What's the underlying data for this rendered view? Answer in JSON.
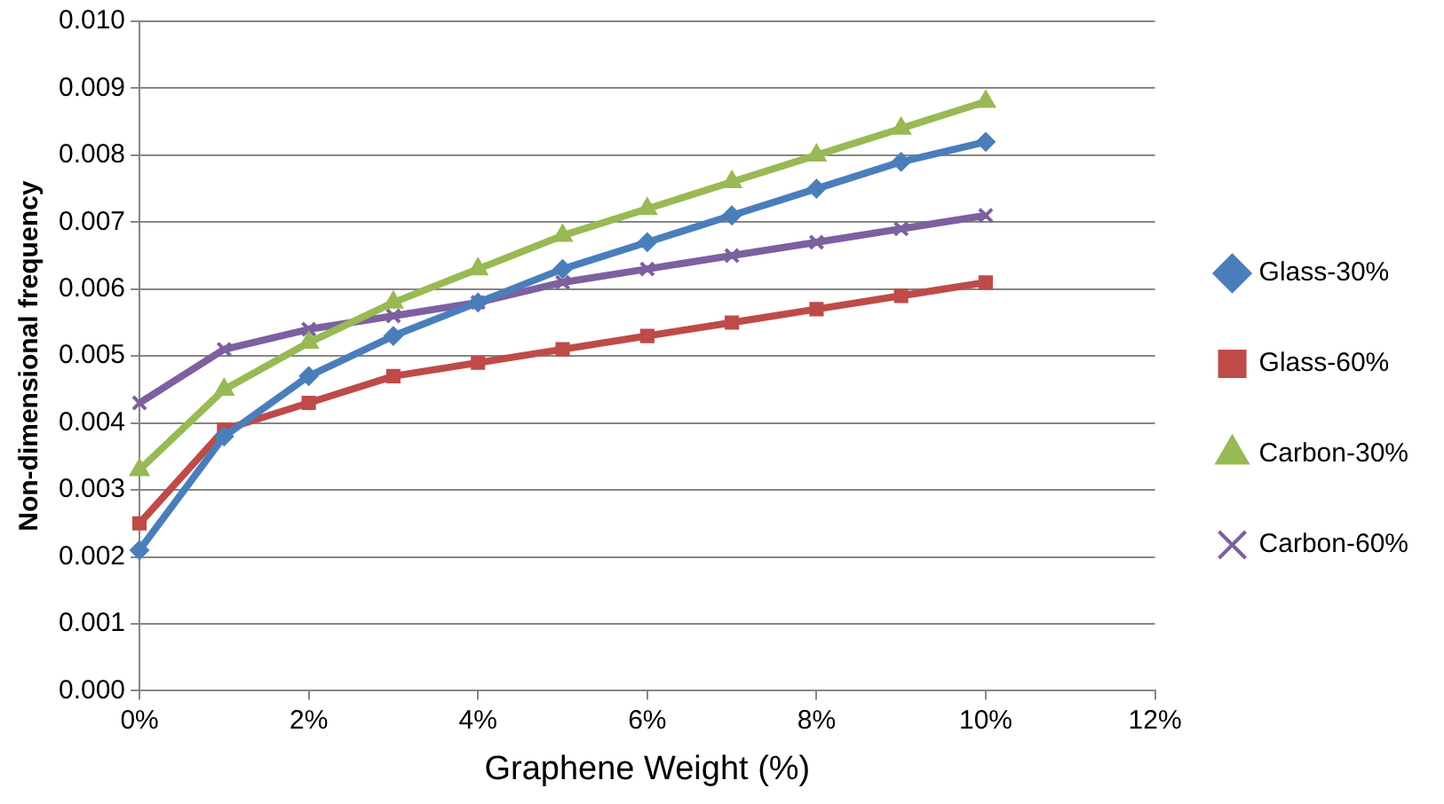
{
  "chart_data": {
    "type": "line",
    "xlabel": "Graphene Weight (%)",
    "ylabel": "Non-dimensional frequency",
    "x": [
      0,
      1,
      2,
      3,
      4,
      5,
      6,
      7,
      8,
      9,
      10
    ],
    "series": [
      {
        "name": "Glass-30%",
        "color": "#4a7ebb",
        "marker": "diamond",
        "values": [
          0.0021,
          0.0038,
          0.0047,
          0.0053,
          0.0058,
          0.0063,
          0.0067,
          0.0071,
          0.0075,
          0.0079,
          0.0082
        ]
      },
      {
        "name": "Glass-60%",
        "color": "#be4b48",
        "marker": "square",
        "values": [
          0.0025,
          0.0039,
          0.0043,
          0.0047,
          0.0049,
          0.0051,
          0.0053,
          0.0055,
          0.0057,
          0.0059,
          0.0061
        ]
      },
      {
        "name": "Carbon-30%",
        "color": "#98b954",
        "marker": "triangle",
        "values": [
          0.0033,
          0.0045,
          0.0052,
          0.0058,
          0.0063,
          0.0068,
          0.0072,
          0.0076,
          0.008,
          0.0084,
          0.0088
        ]
      },
      {
        "name": "Carbon-60%",
        "color": "#7d60a0",
        "marker": "cross",
        "values": [
          0.0043,
          0.0051,
          0.0054,
          0.0056,
          0.0058,
          0.0061,
          0.0063,
          0.0065,
          0.0067,
          0.0069,
          0.0071
        ]
      }
    ],
    "xlim": [
      0,
      12
    ],
    "xticks": [
      {
        "value": 0,
        "label": "0%"
      },
      {
        "value": 2,
        "label": "2%"
      },
      {
        "value": 4,
        "label": "4%"
      },
      {
        "value": 6,
        "label": "6%"
      },
      {
        "value": 8,
        "label": "8%"
      },
      {
        "value": 10,
        "label": "10%"
      },
      {
        "value": 12,
        "label": "12%"
      }
    ],
    "ylim": [
      0,
      0.01
    ],
    "yticks": [
      {
        "value": 0,
        "label": "0.000"
      },
      {
        "value": 0.001,
        "label": "0.001"
      },
      {
        "value": 0.002,
        "label": "0.002"
      },
      {
        "value": 0.003,
        "label": "0.003"
      },
      {
        "value": 0.004,
        "label": "0.004"
      },
      {
        "value": 0.005,
        "label": "0.005"
      },
      {
        "value": 0.006,
        "label": "0.006"
      },
      {
        "value": 0.007,
        "label": "0.007"
      },
      {
        "value": 0.008,
        "label": "0.008"
      },
      {
        "value": 0.009,
        "label": "0.009"
      },
      {
        "value": 0.01,
        "label": "0.010"
      }
    ],
    "grid": "y",
    "legend": "right",
    "line_style": "solid"
  }
}
